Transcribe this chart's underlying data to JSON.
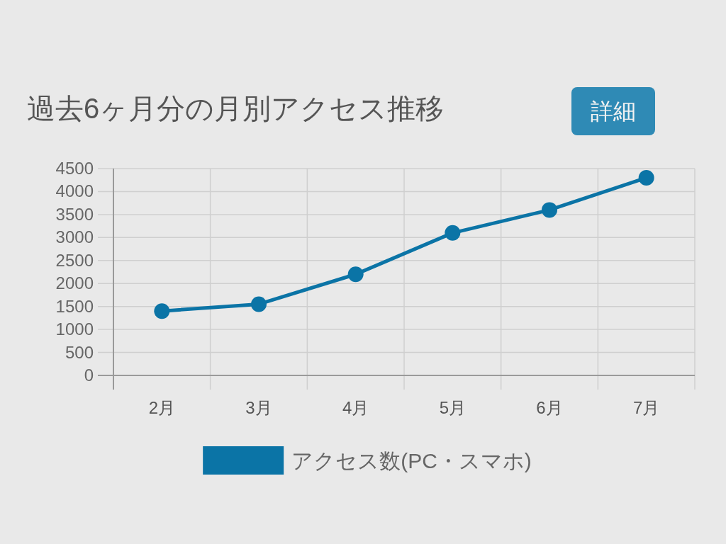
{
  "chart_data": {
    "type": "line",
    "title": "過去6ヶ月分の月別アクセス推移",
    "annotations": [
      "詳細"
    ],
    "categories": [
      "2月",
      "3月",
      "4月",
      "5月",
      "6月",
      "7月"
    ],
    "series": [
      {
        "name": "アクセス数(PC・スマホ)",
        "color": "#0b74a6",
        "values": [
          1400,
          1550,
          2200,
          3100,
          3600,
          4300
        ]
      }
    ],
    "ylim": [
      0,
      4500
    ],
    "yticks": [
      0,
      500,
      1000,
      1500,
      2000,
      2500,
      3000,
      3500,
      4000,
      4500
    ],
    "grid": true,
    "legend": "bottom",
    "marker": "circle",
    "line_style": "solid"
  }
}
